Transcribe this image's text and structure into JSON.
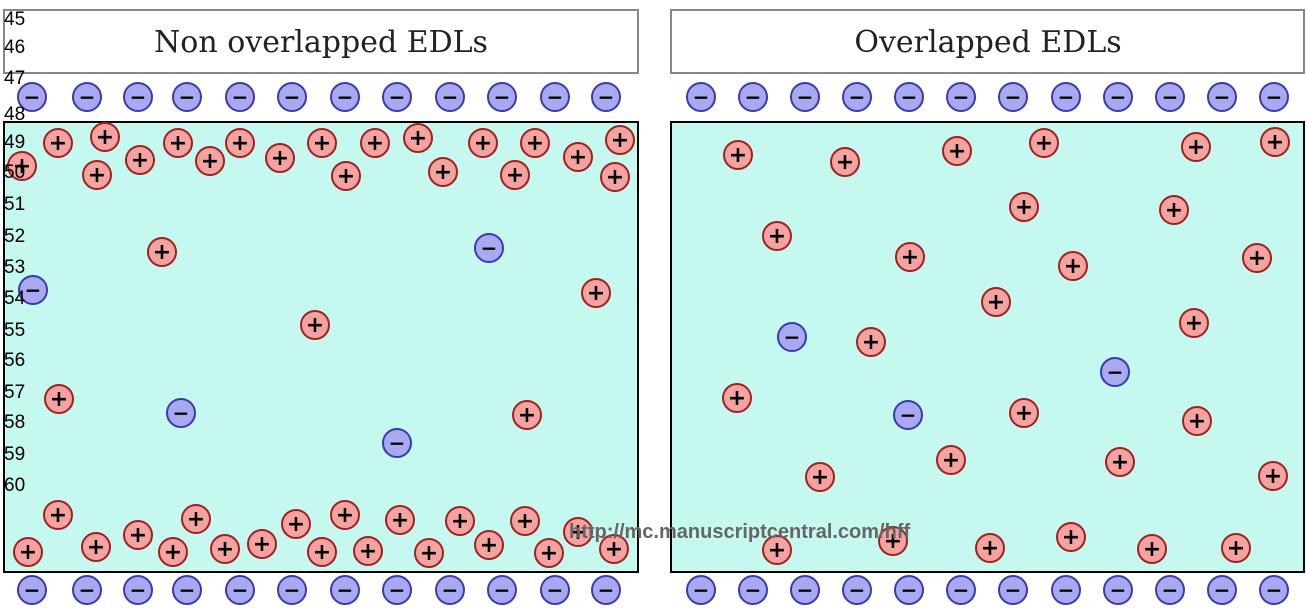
{
  "panels": [
    {
      "title": "Non overlapped EDLs",
      "overlapped": false
    },
    {
      "title": "Overlapped EDLs",
      "overlapped": true
    }
  ],
  "line_numbers": [
    "45",
    "46",
    "47",
    "48",
    "49",
    "50",
    "51",
    "52",
    "53",
    "54",
    "55",
    "56",
    "57",
    "58",
    "59",
    "60"
  ],
  "watermark": "http://mc.manuscriptcentral.com/hff",
  "legend_signs": {
    "positive": "+",
    "negative": "−"
  },
  "colors": {
    "fluid": "#c5f8ef",
    "cation_fill": "#f5a3a1",
    "cation_stroke": "#a02020",
    "anion_fill": "#a9a9f2",
    "anion_stroke": "#3a3ab0",
    "frame": "#888888"
  }
}
